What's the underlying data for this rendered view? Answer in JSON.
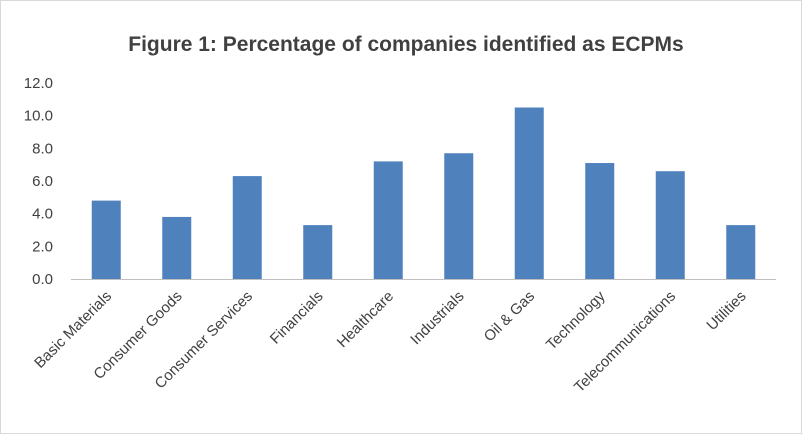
{
  "chart_data": {
    "type": "bar",
    "title": "Figure 1: Percentage of companies identified as ECPMs",
    "xlabel": "",
    "ylabel": "",
    "categories": [
      "Basic Materials",
      "Consumer Goods",
      "Consumer Services",
      "Financials",
      "Healthcare",
      "Industrials",
      "Oil & Gas",
      "Technology",
      "Telecommunications",
      "Utilities"
    ],
    "values": [
      4.8,
      3.8,
      6.3,
      3.3,
      7.2,
      7.7,
      10.5,
      7.1,
      6.6,
      3.3
    ],
    "ylim": [
      0,
      12
    ],
    "yticks": [
      "0.0",
      "2.0",
      "4.0",
      "6.0",
      "8.0",
      "10.0",
      "12.0"
    ],
    "ytick_values": [
      0,
      2,
      4,
      6,
      8,
      10,
      12
    ],
    "grid": false,
    "legend": "none",
    "bar_color": "#4f81bd"
  }
}
